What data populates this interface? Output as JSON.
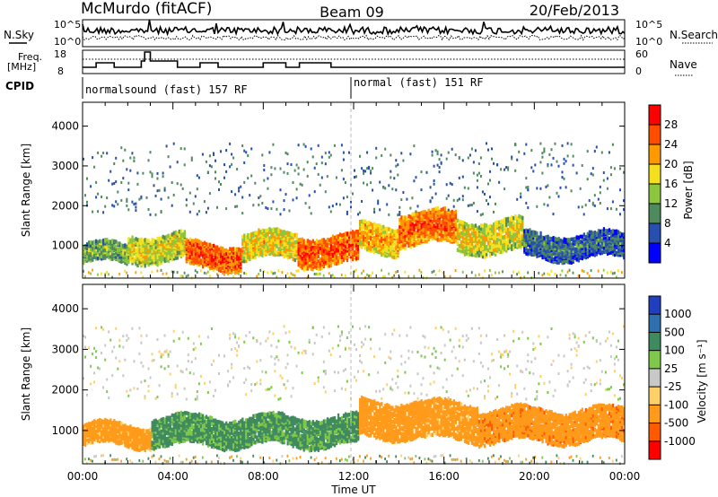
{
  "header": {
    "station": "McMurdo (fitACF)",
    "beam": "Beam 09",
    "date": "20/Feb/2013"
  },
  "strips": {
    "nsky_label": "N.Sky",
    "nsky_ticks": [
      "10^5",
      "10^0"
    ],
    "nsearch_label": "N.Search",
    "nsearch_ticks": [
      "10^5",
      "10^0"
    ],
    "freq_label_line1": "Freq.",
    "freq_label_line2": "[MHz]",
    "freq_ticks": [
      "18",
      "8"
    ],
    "nave_label": "Nave",
    "nave_ticks": [
      "60",
      "0"
    ],
    "cpid_label": "CPID",
    "cpid_segments": [
      {
        "label": "normalsound (fast) 157 RF",
        "start_hour": 0,
        "end_hour": 12
      },
      {
        "label": "normal (fast) 151 RF",
        "start_hour": 12,
        "end_hour": 24
      }
    ]
  },
  "chart_data": [
    {
      "type": "heatmap",
      "title": "",
      "ylabel": "Slant Range [km]",
      "xlabel": "Time UT",
      "x_range_hours": [
        0,
        24
      ],
      "ylim": [
        180,
        4600
      ],
      "yticks": [
        "1000",
        "2000",
        "3000",
        "4000"
      ],
      "colorbar": {
        "label": "Power [dB]",
        "ticks": [
          "4",
          "8",
          "12",
          "16",
          "20",
          "24",
          "28"
        ],
        "range": [
          0,
          32
        ],
        "colors": [
          "#0000ff",
          "#264fae",
          "#4f8a5f",
          "#8cc63f",
          "#f4e01e",
          "#ff9900",
          "#ff4d00",
          "#ff0000"
        ]
      },
      "echo_bands": [
        {
          "t0": 0.0,
          "t1": 2.0,
          "center_km": 850,
          "width_km": 450,
          "power_db": 13
        },
        {
          "t0": 2.0,
          "t1": 4.5,
          "center_km": 1000,
          "width_km": 650,
          "power_db": 18
        },
        {
          "t0": 4.5,
          "t1": 7.0,
          "center_km": 800,
          "width_km": 600,
          "power_db": 27
        },
        {
          "t0": 7.0,
          "t1": 9.5,
          "center_km": 1050,
          "width_km": 650,
          "power_db": 20
        },
        {
          "t0": 9.5,
          "t1": 12.2,
          "center_km": 950,
          "width_km": 700,
          "power_db": 27
        },
        {
          "t0": 12.2,
          "t1": 14.0,
          "center_km": 1250,
          "width_km": 700,
          "power_db": 22
        },
        {
          "t0": 14.0,
          "t1": 16.5,
          "center_km": 1500,
          "width_km": 800,
          "power_db": 26
        },
        {
          "t0": 16.5,
          "t1": 19.5,
          "center_km": 1300,
          "width_km": 800,
          "power_db": 19
        },
        {
          "t0": 19.5,
          "t1": 24.0,
          "center_km": 1050,
          "width_km": 600,
          "power_db": 9
        }
      ]
    },
    {
      "type": "heatmap",
      "title": "",
      "ylabel": "Slant Range [km]",
      "xlabel": "Time UT",
      "x_range_hours": [
        0,
        24
      ],
      "ylim": [
        180,
        4600
      ],
      "yticks": [
        "1000",
        "2000",
        "3000",
        "4000"
      ],
      "xticks": [
        "00:00",
        "04:00",
        "08:00",
        "12:00",
        "16:00",
        "20:00",
        "00:00"
      ],
      "colorbar": {
        "label": "Velocity [m s⁻¹]",
        "ticks": [
          "1000",
          "500",
          "100",
          "25",
          "-25",
          "-100",
          "-500",
          "-1000"
        ],
        "colors": [
          "#1f3fbf",
          "#2e6fae",
          "#3f8a5f",
          "#7fc84a",
          "#c8c8c8",
          "#ffd06a",
          "#ff9a1a",
          "#ff5a00",
          "#ff0000"
        ]
      },
      "echo_bands": [
        {
          "t0": 0.0,
          "t1": 3.0,
          "center_km": 950,
          "width_km": 500,
          "velocity": -200
        },
        {
          "t0": 3.0,
          "t1": 12.2,
          "center_km": 1050,
          "width_km": 700,
          "velocity": 150
        },
        {
          "t0": 12.2,
          "t1": 15.0,
          "center_km": 1350,
          "width_km": 900,
          "velocity": -300
        },
        {
          "t0": 15.0,
          "t1": 17.5,
          "center_km": 1300,
          "width_km": 900,
          "velocity": -200
        },
        {
          "t0": 17.5,
          "t1": 20.5,
          "center_km": 1200,
          "width_km": 800,
          "velocity": -400
        }
      ]
    }
  ]
}
